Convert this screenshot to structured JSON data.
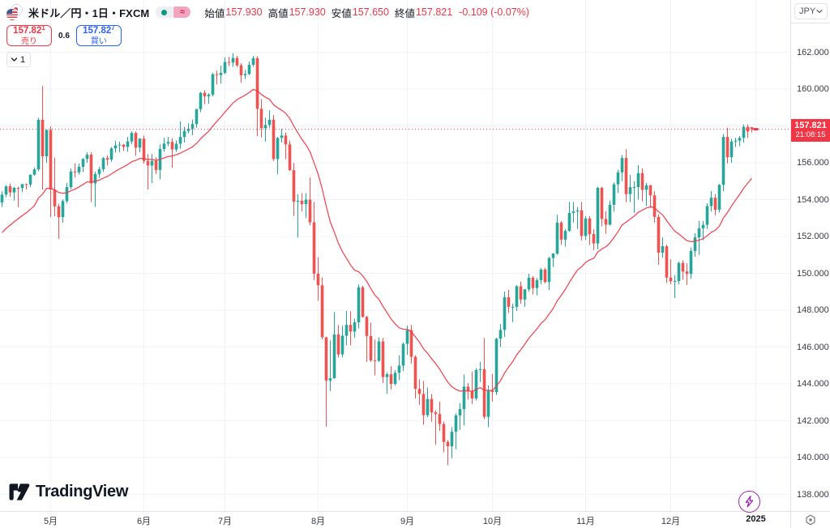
{
  "colors": {
    "up": "#26a69a",
    "down": "#ef5350",
    "accent_red": "#f23645",
    "accent_blue": "#2962ff",
    "grid": "#f0f3fa",
    "text": "#131722",
    "axis_text": "#363a45",
    "border": "#e0e3eb",
    "status_open_dot": "#089981",
    "status_delay_bg": "#f3a5c0",
    "flash_purple": "#9c27b0",
    "label_bg": "#f23645"
  },
  "header": {
    "symbol_title": "米ドル／円・1日・FXCM",
    "badges": {
      "delay_symbol": "≈"
    },
    "ohlc": {
      "open_label": "始値",
      "open": "157.930",
      "high_label": "高値",
      "high": "157.930",
      "low_label": "安値",
      "low": "157.650",
      "close_label": "終値",
      "close": "157.821",
      "change": "-0.109 (-0.07%)"
    }
  },
  "trade_panel": {
    "sell_price_main": "157.82",
    "sell_price_sup": "1",
    "sell_label": "売り",
    "spread": "0.6",
    "buy_price_main": "157.82",
    "buy_price_sup": "7",
    "buy_label": "買い"
  },
  "interval_button": {
    "label": "1"
  },
  "price_axis": {
    "currency": "JPY",
    "levels": [
      "162.000",
      "160.000",
      "158.000",
      "156.000",
      "154.000",
      "152.000",
      "150.000",
      "148.000",
      "146.000",
      "144.000",
      "142.000",
      "140.000",
      "138.000"
    ],
    "current_price": "157.821",
    "countdown": "21:08:15"
  },
  "time_axis": {
    "ticks": [
      {
        "label": "5月",
        "index": 12
      },
      {
        "label": "6月",
        "index": 35
      },
      {
        "label": "7月",
        "index": 55
      },
      {
        "label": "8月",
        "index": 78
      },
      {
        "label": "9月",
        "index": 100
      },
      {
        "label": "10月",
        "index": 121
      },
      {
        "label": "11月",
        "index": 144
      },
      {
        "label": "12月",
        "index": 165
      },
      {
        "label": "2025",
        "index": 186,
        "emphasis": true
      }
    ]
  },
  "watermark": {
    "text": "TradingView"
  },
  "chart_data": {
    "type": "candlestick",
    "symbol": "USD/JPY",
    "interval": "1D",
    "exchange": "FXCM",
    "title": "米ドル／円・1日・FXCM",
    "ylim": [
      137.1,
      164.8
    ],
    "grid": true,
    "price_gridlines": [
      162,
      160,
      158,
      156,
      154,
      152,
      150,
      148,
      146,
      144,
      142,
      140,
      138
    ],
    "current_price": 157.821,
    "indicator": {
      "type": "ema",
      "length": 21,
      "seed": 152.0,
      "color": "#f23645"
    },
    "candles": [
      [
        153.85,
        154.45,
        153.6,
        154.27
      ],
      [
        154.27,
        154.79,
        154.15,
        154.72
      ],
      [
        154.72,
        154.88,
        154.15,
        154.39
      ],
      [
        154.39,
        154.7,
        153.95,
        154.64
      ],
      [
        154.64,
        154.7,
        153.59,
        154.63
      ],
      [
        154.63,
        154.87,
        154.4,
        154.84
      ],
      [
        154.84,
        154.88,
        154.55,
        154.82
      ],
      [
        154.82,
        155.37,
        154.68,
        155.35
      ],
      [
        155.35,
        155.75,
        155.3,
        155.64
      ],
      [
        155.64,
        158.44,
        155.55,
        158.33
      ],
      [
        158.33,
        160.17,
        154.54,
        156.35
      ],
      [
        156.35,
        157.8,
        156.0,
        157.78
      ],
      [
        157.78,
        157.98,
        153.04,
        154.55
      ],
      [
        154.55,
        156.28,
        153.1,
        153.64
      ],
      [
        153.64,
        153.77,
        151.86,
        153.05
      ],
      [
        153.05,
        154.01,
        152.75,
        153.92
      ],
      [
        153.92,
        154.91,
        153.8,
        154.68
      ],
      [
        154.68,
        155.69,
        154.56,
        155.53
      ],
      [
        155.53,
        155.97,
        155.2,
        155.48
      ],
      [
        155.48,
        155.96,
        155.37,
        155.78
      ],
      [
        155.78,
        156.25,
        155.5,
        156.21
      ],
      [
        156.21,
        156.56,
        156.0,
        156.44
      ],
      [
        156.44,
        156.57,
        153.86,
        154.88
      ],
      [
        154.88,
        155.51,
        153.6,
        155.39
      ],
      [
        155.39,
        155.78,
        155.18,
        155.65
      ],
      [
        155.65,
        156.31,
        155.5,
        156.25
      ],
      [
        156.25,
        156.4,
        155.85,
        156.17
      ],
      [
        156.17,
        156.85,
        156.05,
        156.78
      ],
      [
        156.78,
        157.2,
        156.55,
        156.94
      ],
      [
        156.94,
        157.15,
        156.58,
        156.98
      ],
      [
        156.98,
        157.02,
        156.65,
        156.86
      ],
      [
        156.86,
        157.4,
        156.6,
        157.16
      ],
      [
        157.16,
        157.72,
        157.0,
        157.62
      ],
      [
        157.62,
        157.7,
        156.37,
        156.82
      ],
      [
        156.82,
        157.34,
        156.56,
        157.31
      ],
      [
        157.31,
        157.47,
        155.95,
        156.1
      ],
      [
        156.1,
        156.48,
        154.55,
        155.85
      ],
      [
        155.85,
        156.49,
        154.9,
        156.1
      ],
      [
        156.1,
        156.3,
        155.4,
        155.61
      ],
      [
        155.61,
        157.0,
        155.1,
        156.75
      ],
      [
        156.75,
        157.35,
        156.6,
        157.04
      ],
      [
        157.04,
        157.4,
        156.9,
        157.13
      ],
      [
        157.13,
        157.32,
        155.72,
        156.72
      ],
      [
        156.72,
        157.2,
        156.6,
        157.03
      ],
      [
        157.03,
        158.25,
        156.76,
        157.4
      ],
      [
        157.4,
        157.95,
        157.1,
        157.73
      ],
      [
        157.73,
        158.14,
        157.6,
        157.85
      ],
      [
        157.85,
        158.35,
        157.5,
        158.1
      ],
      [
        158.1,
        158.93,
        157.9,
        158.91
      ],
      [
        158.91,
        159.84,
        158.75,
        159.8
      ],
      [
        159.8,
        159.94,
        159.18,
        159.61
      ],
      [
        159.61,
        159.78,
        159.2,
        159.7
      ],
      [
        159.7,
        160.87,
        159.6,
        160.81
      ],
      [
        160.81,
        161.0,
        160.25,
        160.76
      ],
      [
        160.76,
        161.28,
        160.3,
        160.88
      ],
      [
        160.88,
        161.72,
        160.8,
        161.47
      ],
      [
        161.47,
        161.75,
        161.25,
        161.44
      ],
      [
        161.44,
        161.95,
        161.2,
        161.69
      ],
      [
        161.69,
        161.8,
        161.2,
        161.29
      ],
      [
        161.29,
        161.4,
        160.35,
        160.75
      ],
      [
        160.75,
        161.05,
        160.55,
        160.82
      ],
      [
        160.82,
        161.5,
        160.75,
        161.32
      ],
      [
        161.32,
        161.81,
        161.2,
        161.68
      ],
      [
        161.68,
        161.77,
        157.44,
        158.93
      ],
      [
        158.93,
        159.45,
        157.38,
        157.88
      ],
      [
        157.88,
        158.45,
        157.15,
        158.05
      ],
      [
        158.05,
        158.85,
        157.9,
        158.34
      ],
      [
        158.34,
        158.6,
        156.1,
        156.2
      ],
      [
        156.2,
        157.4,
        155.37,
        157.35
      ],
      [
        157.35,
        157.85,
        157.1,
        157.48
      ],
      [
        157.48,
        157.65,
        156.2,
        157.0
      ],
      [
        157.0,
        157.2,
        155.55,
        155.6
      ],
      [
        155.6,
        155.99,
        153.11,
        153.89
      ],
      [
        153.89,
        154.3,
        151.94,
        153.94
      ],
      [
        153.94,
        154.35,
        153.35,
        153.76
      ],
      [
        153.76,
        154.35,
        153.0,
        154.0
      ],
      [
        154.0,
        155.2,
        152.6,
        152.77
      ],
      [
        152.77,
        153.88,
        149.63,
        149.98
      ],
      [
        149.98,
        150.88,
        148.51,
        149.35
      ],
      [
        149.35,
        149.77,
        146.42,
        146.53
      ],
      [
        146.53,
        146.56,
        141.68,
        144.18
      ],
      [
        144.18,
        146.36,
        143.61,
        144.3
      ],
      [
        144.3,
        147.9,
        144.28,
        146.68
      ],
      [
        146.68,
        147.2,
        145.43,
        145.6
      ],
      [
        145.6,
        147.16,
        145.45,
        146.61
      ],
      [
        146.61,
        147.96,
        146.1,
        147.2
      ],
      [
        147.2,
        147.94,
        146.08,
        146.84
      ],
      [
        146.84,
        147.54,
        146.5,
        147.34
      ],
      [
        147.34,
        149.39,
        147.0,
        149.24
      ],
      [
        149.24,
        149.32,
        147.6,
        147.63
      ],
      [
        147.63,
        147.7,
        145.19,
        146.6
      ],
      [
        146.6,
        147.33,
        145.2,
        145.27
      ],
      [
        145.27,
        146.4,
        144.46,
        145.25
      ],
      [
        145.25,
        146.53,
        145.18,
        146.3
      ],
      [
        146.3,
        146.5,
        144.05,
        144.37
      ],
      [
        144.37,
        144.62,
        143.45,
        144.52
      ],
      [
        144.52,
        144.95,
        143.69,
        144.0
      ],
      [
        144.0,
        144.75,
        143.9,
        144.6
      ],
      [
        144.6,
        145.55,
        144.2,
        144.99
      ],
      [
        144.99,
        146.25,
        144.7,
        146.17
      ],
      [
        146.17,
        147.16,
        145.58,
        146.92
      ],
      [
        146.92,
        147.2,
        145.1,
        145.47
      ],
      [
        145.47,
        145.55,
        143.2,
        143.73
      ],
      [
        143.73,
        144.25,
        142.85,
        143.45
      ],
      [
        143.45,
        144.15,
        141.78,
        142.3
      ],
      [
        142.3,
        143.81,
        142.2,
        143.18
      ],
      [
        143.18,
        143.45,
        141.95,
        142.45
      ],
      [
        142.45,
        142.55,
        140.71,
        142.36
      ],
      [
        142.36,
        143.04,
        141.45,
        141.82
      ],
      [
        141.82,
        141.95,
        140.28,
        140.85
      ],
      [
        140.85,
        140.95,
        139.58,
        140.61
      ],
      [
        140.61,
        141.65,
        139.96,
        141.4
      ],
      [
        141.4,
        142.4,
        140.45,
        142.29
      ],
      [
        142.29,
        142.95,
        141.5,
        142.63
      ],
      [
        142.63,
        144.5,
        141.74,
        143.85
      ],
      [
        143.85,
        144.05,
        143.15,
        143.6
      ],
      [
        143.6,
        144.67,
        142.9,
        143.21
      ],
      [
        143.21,
        144.84,
        143.1,
        144.75
      ],
      [
        144.75,
        145.2,
        144.1,
        144.8
      ],
      [
        144.8,
        146.49,
        142.09,
        142.21
      ],
      [
        142.21,
        143.91,
        141.65,
        143.63
      ],
      [
        143.63,
        144.54,
        143.04,
        143.56
      ],
      [
        143.56,
        146.5,
        143.4,
        146.45
      ],
      [
        146.45,
        147.24,
        146.0,
        146.93
      ],
      [
        146.93,
        149.02,
        146.55,
        148.7
      ],
      [
        148.7,
        149.1,
        147.85,
        148.18
      ],
      [
        148.18,
        148.35,
        147.35,
        148.18
      ],
      [
        148.18,
        149.35,
        147.95,
        149.3
      ],
      [
        149.3,
        149.55,
        148.35,
        148.58
      ],
      [
        148.58,
        149.15,
        148.18,
        149.13
      ],
      [
        149.13,
        149.98,
        149.0,
        149.76
      ],
      [
        149.76,
        149.85,
        148.85,
        149.2
      ],
      [
        149.2,
        149.75,
        148.8,
        149.63
      ],
      [
        149.63,
        150.28,
        149.4,
        150.2
      ],
      [
        150.2,
        150.3,
        149.45,
        149.53
      ],
      [
        149.53,
        150.89,
        149.1,
        150.83
      ],
      [
        150.83,
        151.1,
        150.35,
        151.07
      ],
      [
        151.07,
        153.18,
        151.0,
        152.75
      ],
      [
        152.75,
        152.83,
        151.55,
        151.83
      ],
      [
        151.83,
        152.4,
        151.45,
        152.3
      ],
      [
        152.3,
        153.88,
        152.25,
        153.28
      ],
      [
        153.28,
        153.87,
        152.75,
        153.36
      ],
      [
        153.36,
        153.6,
        152.4,
        153.42
      ],
      [
        153.42,
        153.88,
        151.79,
        152.03
      ],
      [
        152.03,
        153.1,
        151.8,
        152.98
      ],
      [
        152.98,
        153.1,
        151.54,
        152.13
      ],
      [
        152.13,
        152.4,
        151.25,
        151.62
      ],
      [
        151.62,
        154.7,
        151.3,
        154.64
      ],
      [
        154.64,
        154.7,
        152.55,
        152.95
      ],
      [
        152.95,
        153.37,
        152.15,
        152.64
      ],
      [
        152.64,
        153.95,
        152.6,
        153.72
      ],
      [
        153.72,
        154.93,
        153.35,
        154.83
      ],
      [
        154.83,
        155.62,
        154.35,
        155.48
      ],
      [
        155.48,
        156.42,
        155.0,
        156.26
      ],
      [
        156.26,
        156.74,
        153.86,
        154.3
      ],
      [
        154.3,
        155.35,
        153.85,
        154.67
      ],
      [
        154.67,
        155.0,
        153.28,
        154.68
      ],
      [
        154.68,
        155.88,
        154.0,
        155.44
      ],
      [
        155.44,
        155.7,
        153.9,
        154.53
      ],
      [
        154.53,
        154.9,
        153.65,
        154.78
      ],
      [
        154.78,
        154.8,
        153.55,
        154.23
      ],
      [
        154.23,
        154.45,
        152.75,
        153.06
      ],
      [
        153.06,
        153.2,
        150.46,
        151.12
      ],
      [
        151.12,
        151.95,
        150.85,
        151.47
      ],
      [
        151.47,
        151.55,
        149.47,
        149.77
      ],
      [
        149.77,
        150.76,
        149.4,
        149.57
      ],
      [
        149.57,
        149.9,
        148.65,
        149.58
      ],
      [
        149.58,
        150.65,
        149.4,
        150.56
      ],
      [
        150.56,
        150.71,
        149.65,
        150.1
      ],
      [
        150.1,
        150.55,
        149.36,
        149.97
      ],
      [
        149.97,
        151.4,
        149.7,
        151.21
      ],
      [
        151.21,
        152.18,
        150.9,
        151.95
      ],
      [
        151.95,
        152.85,
        151.0,
        152.44
      ],
      [
        152.44,
        152.84,
        151.8,
        152.63
      ],
      [
        152.63,
        153.8,
        152.4,
        153.65
      ],
      [
        153.65,
        154.48,
        153.35,
        154.1
      ],
      [
        154.1,
        154.3,
        153.15,
        153.45
      ],
      [
        153.45,
        154.85,
        153.3,
        154.8
      ],
      [
        154.8,
        157.55,
        154.45,
        157.4
      ],
      [
        157.4,
        157.9,
        155.96,
        156.3
      ],
      [
        156.3,
        157.3,
        156.0,
        157.15
      ],
      [
        157.15,
        157.35,
        156.85,
        157.2
      ],
      [
        157.2,
        157.45,
        156.9,
        157.35
      ],
      [
        157.35,
        158.08,
        157.1,
        157.95
      ],
      [
        157.95,
        158.08,
        157.35,
        157.7
      ],
      [
        157.93,
        157.93,
        157.65,
        157.821
      ]
    ]
  }
}
